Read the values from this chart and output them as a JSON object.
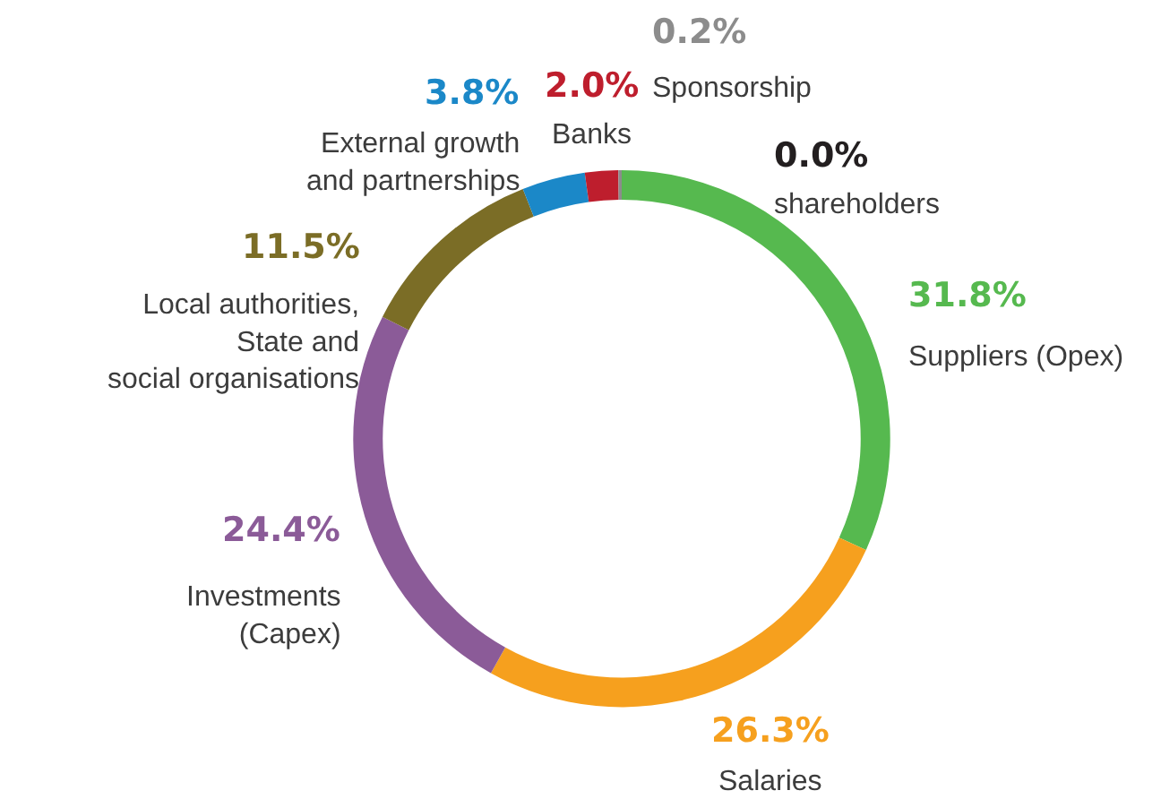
{
  "chart_data": {
    "type": "donut",
    "categories": [
      "Suppliers (Opex)",
      "Salaries",
      "Investments (Capex)",
      "Local authorities, State and social organisations",
      "External growth and partnerships",
      "Banks",
      "Sponsorship",
      "shareholders"
    ],
    "values": [
      31.8,
      26.3,
      24.4,
      11.5,
      3.8,
      2.0,
      0.2,
      0.0
    ],
    "colors": [
      "#56b94f",
      "#f6a01e",
      "#8b5b98",
      "#7b6d26",
      "#1b88c8",
      "#be1e2d",
      "#8c8c8c",
      "#231f20"
    ],
    "value_labels": [
      "31.8%",
      "26.3%",
      "24.4%",
      "11.5%",
      "3.8%",
      "2.0%",
      "0.2%",
      "0.0%"
    ],
    "legend": false
  }
}
